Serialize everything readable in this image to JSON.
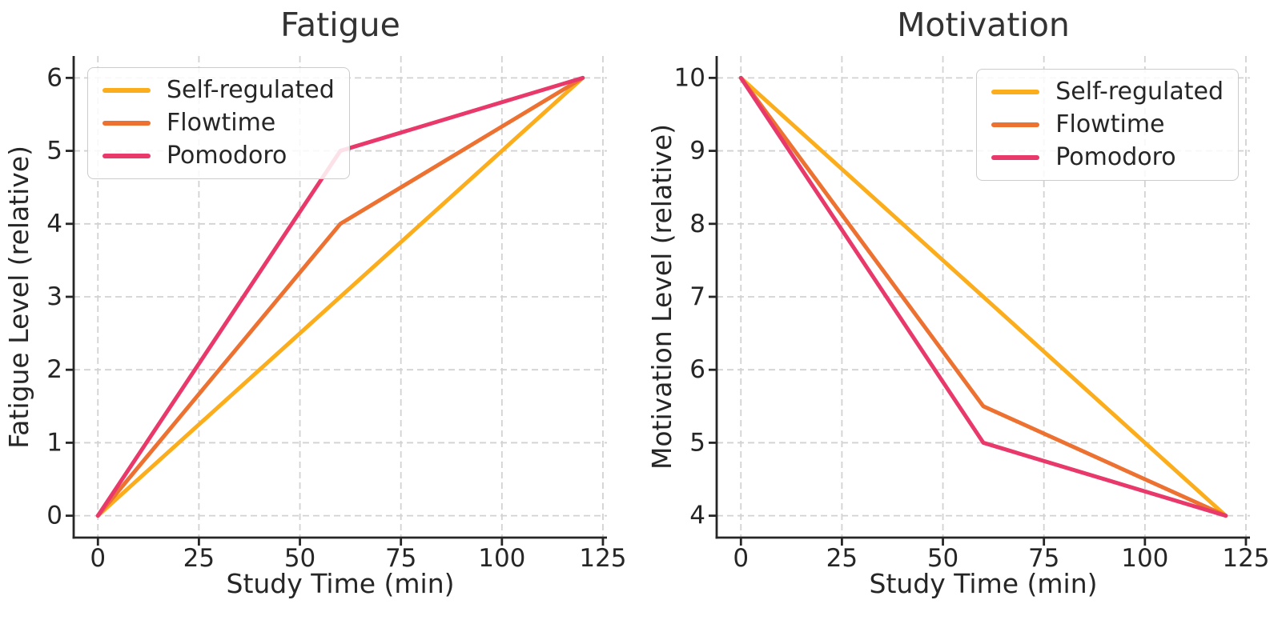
{
  "figure": {
    "background": "#ffffff"
  },
  "style": {
    "grid_color": "#d2d2d2",
    "spine_color": "#262626",
    "text_color": "#262626",
    "title_color": "#333333",
    "legend_border_color": "#cccccc"
  },
  "chart_data": [
    {
      "type": "line",
      "title": "Fatigue",
      "xlabel": "Study Time (min)",
      "ylabel": "Fatigue Level (relative)",
      "x": [
        0,
        60,
        120
      ],
      "series": [
        {
          "name": "Self-regulated",
          "color": "#FBAD1B",
          "values": [
            0,
            3,
            6
          ]
        },
        {
          "name": "Flowtime",
          "color": "#ED7130",
          "values": [
            0,
            4,
            6
          ]
        },
        {
          "name": "Pomodoro",
          "color": "#E9396B",
          "values": [
            0,
            5,
            6
          ]
        }
      ],
      "xticks": [
        0,
        25,
        50,
        75,
        100,
        125
      ],
      "yticks": [
        0,
        1,
        2,
        3,
        4,
        5,
        6
      ],
      "xlim": [
        -6,
        126
      ],
      "ylim": [
        -0.3,
        6.3
      ],
      "grid": true,
      "legend_position": "upper-left"
    },
    {
      "type": "line",
      "title": "Motivation",
      "xlabel": "Study Time (min)",
      "ylabel": "Motivation Level (relative)",
      "x": [
        0,
        60,
        120
      ],
      "series": [
        {
          "name": "Self-regulated",
          "color": "#FBAD1B",
          "values": [
            10,
            7,
            4
          ]
        },
        {
          "name": "Flowtime",
          "color": "#ED7130",
          "values": [
            10,
            5.5,
            4
          ]
        },
        {
          "name": "Pomodoro",
          "color": "#E9396B",
          "values": [
            10,
            5,
            4
          ]
        }
      ],
      "xticks": [
        0,
        25,
        50,
        75,
        100,
        125
      ],
      "yticks": [
        4,
        5,
        6,
        7,
        8,
        9,
        10
      ],
      "xlim": [
        -6,
        126
      ],
      "ylim": [
        3.7,
        10.3
      ],
      "grid": true,
      "legend_position": "upper-right"
    }
  ]
}
